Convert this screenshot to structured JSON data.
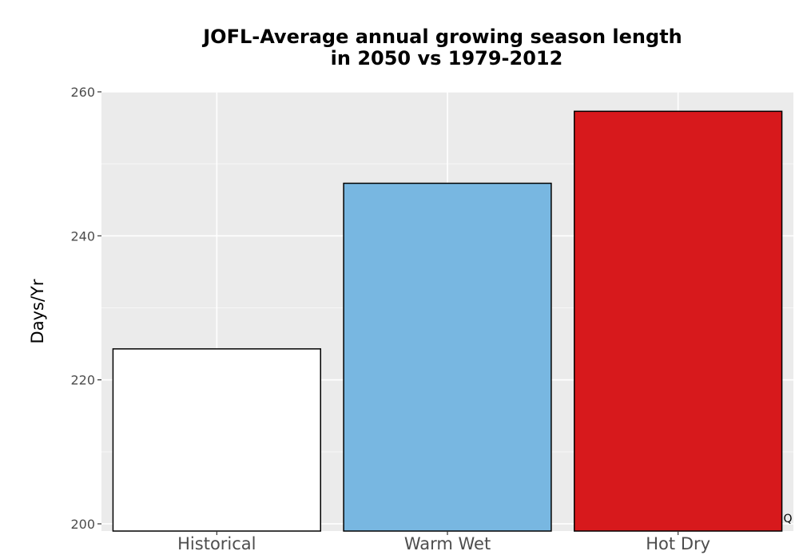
{
  "chart_data": {
    "type": "bar",
    "title": "JOFL-Average annual growing season length\nin 2050 vs 1979-2012",
    "title_lines": [
      "JOFL-Average annual growing season length",
      "in 2050 vs 1979-2012"
    ],
    "xlabel": "",
    "ylabel": "Days/Yr",
    "categories": [
      "Historical",
      "Warm Wet",
      "Hot Dry"
    ],
    "values": [
      224.3,
      247.3,
      257.3
    ],
    "colors": [
      "#ffffff",
      "#78b7e1",
      "#d7191c"
    ],
    "ylim": [
      199,
      260
    ],
    "yticks": [
      200,
      220,
      240,
      260
    ],
    "grid": true,
    "panel_background": "#ebebeb",
    "bar_outline": "#000000",
    "legend": "none",
    "corner_mark": "Q"
  }
}
